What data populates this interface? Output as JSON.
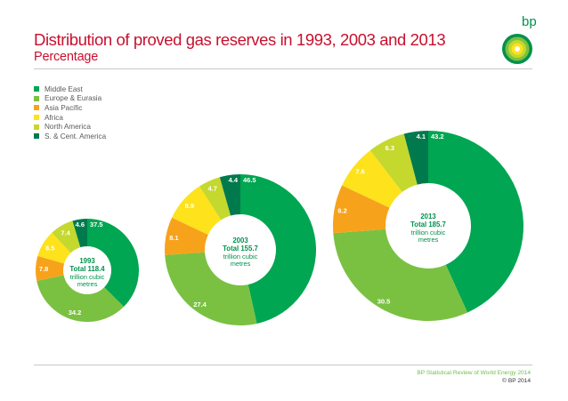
{
  "header": {
    "title": "Distribution of proved gas reserves in 1993, 2003 and 2013",
    "subtitle": "Percentage"
  },
  "brand": {
    "logo_text": "bp"
  },
  "chart_data": {
    "type": "pie",
    "title": "Distribution of proved gas reserves in 1993, 2003 and 2013",
    "subtitle": "Percentage",
    "legend_position": "top-left",
    "categories": [
      "Middle East",
      "Europe & Eurasia",
      "Asia Pacific",
      "Africa",
      "North America",
      "S. & Cent. America"
    ],
    "colors": [
      "#00a651",
      "#7ac142",
      "#f7a21b",
      "#fde21c",
      "#c4d82e",
      "#007a4d"
    ],
    "series": [
      {
        "name": "1993",
        "year_label": "1993",
        "total_label": "Total 118.4",
        "unit_label": "trillion cubic metres",
        "total": 118.4,
        "values": [
          37.5,
          34.2,
          7.8,
          8.5,
          7.4,
          4.6
        ]
      },
      {
        "name": "2003",
        "year_label": "2003",
        "total_label": "Total 155.7",
        "unit_label": "trillion cubic metres",
        "total": 155.7,
        "values": [
          46.5,
          27.4,
          8.1,
          8.9,
          4.7,
          4.4
        ]
      },
      {
        "name": "2013",
        "year_label": "2013",
        "total_label": "Total 185.7",
        "unit_label": "trillion cubic metres",
        "total": 185.7,
        "values": [
          43.2,
          30.5,
          8.2,
          7.6,
          6.3,
          4.1
        ]
      }
    ]
  },
  "footer": {
    "source": "BP Statistical Review of World Energy 2014",
    "copyright": "© BP 2014"
  }
}
